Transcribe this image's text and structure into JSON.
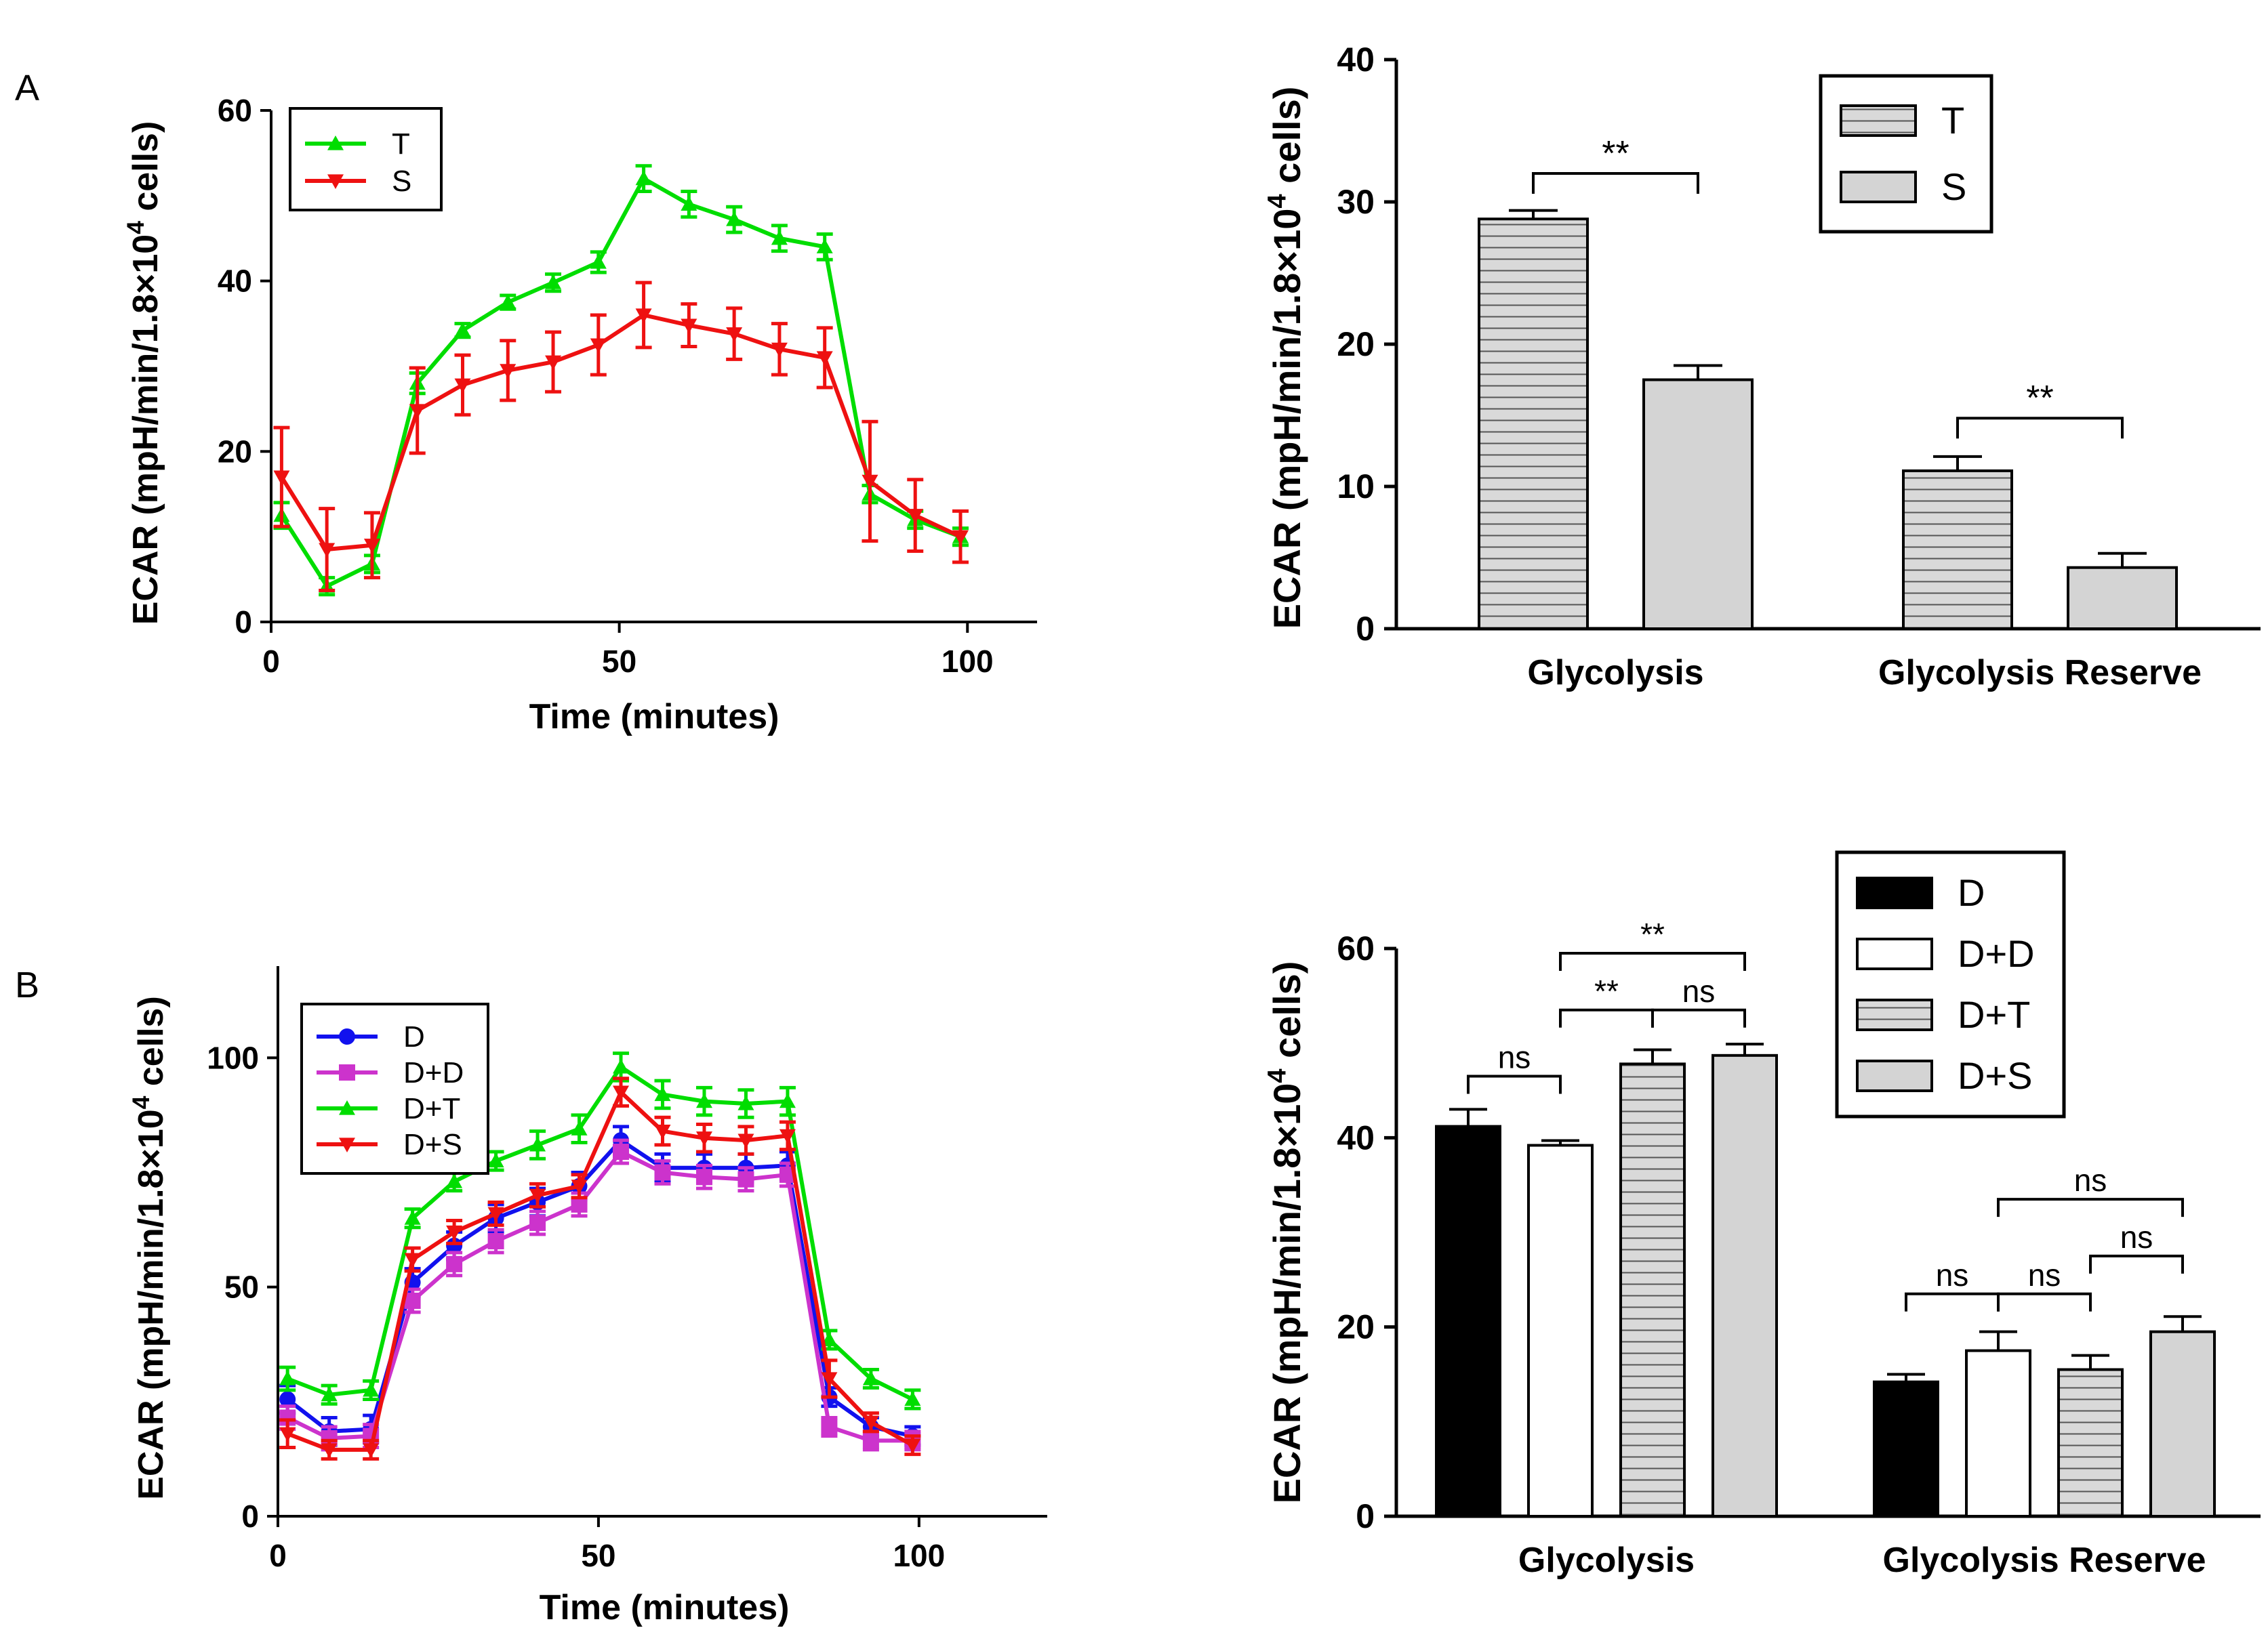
{
  "panel_labels": [
    "A",
    "B"
  ],
  "chart_data": [
    {
      "id": "A-line",
      "type": "line",
      "xlabel": "Time (minutes)",
      "ylabel_main": "ECAR (mpH/min/1.8×10",
      "ylabel_sup": "4",
      "ylabel_end": " cells)",
      "xlim": [
        0,
        110
      ],
      "ylim": [
        0,
        60
      ],
      "xticks": [
        0,
        50,
        100
      ],
      "yticks": [
        0,
        20,
        40,
        60
      ],
      "x": [
        1.5,
        8,
        14.5,
        21,
        27.5,
        34,
        40.5,
        47,
        53.5,
        60,
        66.5,
        73,
        79.5,
        86,
        92.5,
        99
      ],
      "series": [
        {
          "name": "T",
          "color": "#00dd00",
          "marker": "triangle-up",
          "values": [
            12.5,
            4.2,
            6.8,
            28,
            34.2,
            37.5,
            39.8,
            42.2,
            52,
            49,
            47.2,
            45,
            44,
            15,
            12,
            10
          ],
          "errors": [
            1.5,
            1,
            1,
            1.2,
            0.8,
            0.8,
            1,
            1.2,
            1.5,
            1.5,
            1.5,
            1.5,
            1.5,
            1,
            1,
            1
          ]
        },
        {
          "name": "S",
          "color": "#ee1111",
          "marker": "triangle-down",
          "values": [
            17,
            8.5,
            9,
            24.8,
            27.8,
            29.5,
            30.5,
            32.5,
            36,
            34.8,
            33.8,
            32,
            31,
            16.5,
            12.5,
            10
          ],
          "errors": [
            5.8,
            4.8,
            3.8,
            5,
            3.5,
            3.5,
            3.5,
            3.5,
            3.8,
            2.5,
            3,
            3,
            3.5,
            7,
            4.2,
            3
          ]
        }
      ]
    },
    {
      "id": "A-bar",
      "type": "bar",
      "ylabel_main": "ECAR (mpH/min/1.8×10",
      "ylabel_sup": "4",
      "ylabel_end": " cells)",
      "categories": [
        "Glycolysis",
        "Glycolysis Reserve"
      ],
      "ylim": [
        0,
        40
      ],
      "yticks": [
        0,
        10,
        20,
        30,
        40
      ],
      "series": [
        {
          "name": "T",
          "pattern": "hlines",
          "values": [
            28.8,
            11.1
          ],
          "errors": [
            0.6,
            1
          ]
        },
        {
          "name": "S",
          "pattern": "gray",
          "values": [
            17.5,
            4.3
          ],
          "errors": [
            1,
            1
          ]
        }
      ],
      "annotations": [
        {
          "text": "**",
          "category": 0,
          "from": 0,
          "to": 1,
          "y": 32
        },
        {
          "text": "**",
          "category": 1,
          "from": 0,
          "to": 1,
          "y": 14.8
        }
      ]
    },
    {
      "id": "B-line",
      "type": "line",
      "xlabel": "Time (minutes)",
      "ylabel_main": "ECAR (mpH/min/1.8×10",
      "ylabel_sup": "4",
      "ylabel_end": " cells)",
      "xlim": [
        0,
        120
      ],
      "ylim": [
        0,
        120
      ],
      "xticks": [
        0,
        50,
        100
      ],
      "yticks": [
        0,
        50,
        100
      ],
      "x": [
        1.5,
        8,
        14.5,
        21,
        27.5,
        34,
        40.5,
        47,
        53.5,
        60,
        66.5,
        73,
        79.5,
        86,
        92.5,
        99
      ],
      "series": [
        {
          "name": "D",
          "color": "#1111ee",
          "marker": "circle",
          "values": [
            25.5,
            18.5,
            19,
            51,
            59,
            65,
            68.5,
            72,
            82,
            76,
            76,
            76,
            76.5,
            26,
            19.5,
            17.5
          ],
          "errors": [
            3,
            3,
            3,
            3,
            3,
            3,
            3,
            3,
            3,
            3,
            3,
            3,
            3,
            2,
            2,
            2
          ]
        },
        {
          "name": "D+D",
          "color": "#cc33cc",
          "marker": "square",
          "values": [
            21.5,
            17,
            17.5,
            47,
            55,
            60,
            64,
            68,
            79.5,
            75,
            74,
            73.5,
            74.5,
            19.5,
            16.5,
            16.5
          ],
          "errors": [
            2.5,
            2.5,
            2.5,
            2.5,
            2.5,
            2.5,
            2.5,
            2.5,
            2.5,
            2.5,
            2.5,
            2.5,
            2.5,
            2,
            2,
            2
          ]
        },
        {
          "name": "D+T",
          "color": "#00dd00",
          "marker": "triangle-up",
          "values": [
            30,
            26.5,
            27.5,
            65,
            73,
            77.5,
            81,
            84.5,
            98,
            92,
            90.5,
            90,
            90.5,
            38.5,
            30,
            25.5
          ],
          "errors": [
            2.5,
            2,
            2,
            2,
            2,
            2,
            3,
            3,
            3,
            3,
            3,
            3,
            3,
            2,
            2,
            2
          ]
        },
        {
          "name": "D+S",
          "color": "#ee1111",
          "marker": "triangle-down",
          "values": [
            18,
            14.5,
            14.5,
            56,
            62,
            66,
            70,
            72,
            92.5,
            84,
            82.5,
            82,
            83,
            30,
            20.5,
            15.5
          ],
          "errors": [
            3,
            2,
            2,
            2.5,
            2.5,
            2.5,
            2.5,
            2.5,
            3,
            3,
            3,
            3,
            3,
            4,
            2,
            2
          ]
        }
      ]
    },
    {
      "id": "B-bar",
      "type": "bar",
      "ylabel_main": "ECAR (mpH/min/1.8×10",
      "ylabel_sup": "4",
      "ylabel_end": " cells)",
      "categories": [
        "Glycolysis",
        "Glycolysis Reserve"
      ],
      "ylim": [
        0,
        60
      ],
      "yticks": [
        0,
        20,
        40,
        60
      ],
      "series": [
        {
          "name": "D",
          "pattern": "black",
          "values": [
            41.2,
            14.2
          ],
          "errors": [
            1.8,
            0.8
          ]
        },
        {
          "name": "D+D",
          "pattern": "white",
          "values": [
            39.2,
            17.5
          ],
          "errors": [
            0.5,
            2
          ]
        },
        {
          "name": "D+T",
          "pattern": "hlines",
          "values": [
            47.8,
            15.5
          ],
          "errors": [
            1.5,
            1.5
          ]
        },
        {
          "name": "D+S",
          "pattern": "gray",
          "values": [
            48.7,
            19.5
          ],
          "errors": [
            1.2,
            1.6
          ]
        }
      ],
      "annotations": [
        {
          "text": "ns",
          "category": 0,
          "from": 0,
          "to": 1,
          "y": 46.5
        },
        {
          "text": "**",
          "category": 0,
          "from": 1,
          "to": 2,
          "y": 53.5
        },
        {
          "text": "ns",
          "category": 0,
          "from": 2,
          "to": 3,
          "y": 53.5
        },
        {
          "text": "**",
          "category": 0,
          "from": 1,
          "to": 3,
          "y": 59.5
        },
        {
          "text": "ns",
          "category": 1,
          "from": 0,
          "to": 1,
          "y": 23.5
        },
        {
          "text": "ns",
          "category": 1,
          "from": 1,
          "to": 2,
          "y": 23.5
        },
        {
          "text": "ns",
          "category": 1,
          "from": 2,
          "to": 3,
          "y": 27.5
        },
        {
          "text": "ns",
          "category": 1,
          "from": 1,
          "to": 3,
          "y": 33.5
        }
      ]
    }
  ]
}
